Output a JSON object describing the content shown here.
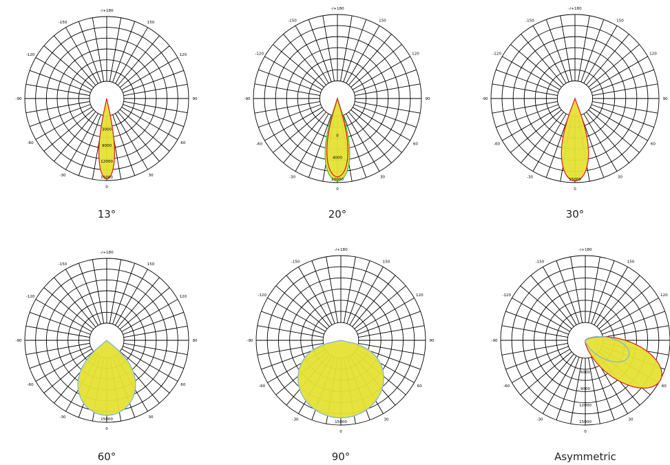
{
  "colors": {
    "fill": "#e6e234",
    "outline_red": "#e12222",
    "outline_green": "#3ec93e",
    "outline_blue": "#7fb4e0",
    "grid": "#000000"
  },
  "chart_data": [
    {
      "type": "polar",
      "title": "13°",
      "angle_labels": [
        "0",
        "30",
        "60",
        "90",
        "120",
        "150",
        "-/+180",
        "-150",
        "-120",
        "-90",
        "-60",
        "-30"
      ],
      "radial_labels": [
        "3000",
        "9000",
        "12000",
        "15000"
      ],
      "rmax": 15000,
      "series": [
        {
          "half_angle_deg": 6.5,
          "peak": 15000,
          "outline": "red"
        }
      ]
    },
    {
      "type": "polar",
      "title": "20°",
      "angle_labels": [
        "0",
        "30",
        "60",
        "90",
        "120",
        "150",
        "-/+180",
        "-150",
        "-120",
        "-90",
        "-60",
        "-30"
      ],
      "radial_labels": [
        "0",
        "4000",
        "20000"
      ],
      "rmax": 20000,
      "series": [
        {
          "half_angle_deg": 10,
          "peak": 20000,
          "outline": "green"
        },
        {
          "half_angle_deg": 9,
          "peak": 19000,
          "outline": "red"
        }
      ]
    },
    {
      "type": "polar",
      "title": "30°",
      "angle_labels": [
        "0",
        "30",
        "60",
        "90",
        "120",
        "150",
        "-/+180",
        "-150",
        "-120",
        "-90",
        "-60",
        "-30"
      ],
      "radial_labels": [
        "15000"
      ],
      "rmax": 15000,
      "series": [
        {
          "half_angle_deg": 11,
          "peak": 15000,
          "outline": "red"
        }
      ]
    },
    {
      "type": "polar",
      "title": "60°",
      "angle_labels": [
        "0",
        "30",
        "60",
        "90",
        "120",
        "150",
        "-/+180",
        "-150",
        "-120",
        "-90",
        "-60",
        "-30"
      ],
      "radial_labels": [
        "15000"
      ],
      "rmax": 15000,
      "series": [
        {
          "half_angle_deg": 27,
          "peak": 14000,
          "outline": "blue"
        }
      ]
    },
    {
      "type": "polar",
      "title": "90°",
      "angle_labels": [
        "0",
        "30",
        "60",
        "90",
        "120",
        "150",
        "-/+180",
        "-150",
        "-120",
        "-90",
        "-60",
        "-30"
      ],
      "radial_labels": [
        "15000"
      ],
      "rmax": 15000,
      "series": [
        {
          "half_angle_deg": 42,
          "peak": 14000,
          "outline": "blue"
        }
      ]
    },
    {
      "type": "polar",
      "title": "Asymmetric",
      "angle_labels": [
        "0",
        "30",
        "60",
        "90",
        "120",
        "150",
        "-/+180",
        "-150",
        "-120",
        "-90",
        "-60",
        "-30"
      ],
      "radial_labels": [
        "6000",
        "9000",
        "12000",
        "15000"
      ],
      "rmax": 15000,
      "series": [
        {
          "asymmetric": true,
          "peak_angle_deg": 62,
          "peak": 15000,
          "outline": "red"
        },
        {
          "asymmetric": true,
          "peak_angle_deg": 70,
          "peak": 8000,
          "outline": "blue"
        }
      ]
    }
  ]
}
